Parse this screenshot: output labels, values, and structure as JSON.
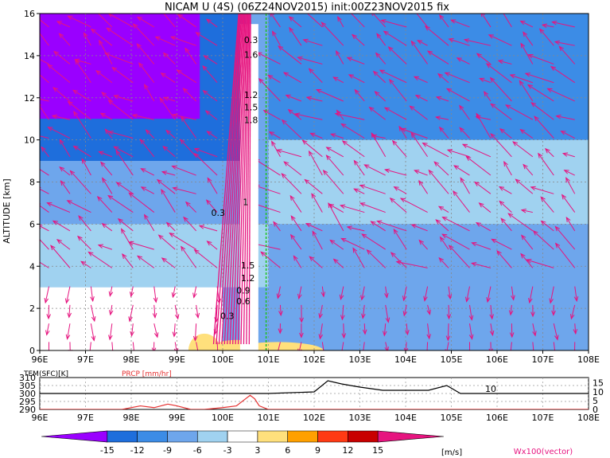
{
  "title": "NICAM U (4S) (06Z24NOV2015) init:00Z23NOV2015 fix",
  "chart_data": [
    {
      "type": "heatmap",
      "title": "NICAM U (4S) (06Z24NOV2015) init:00Z23NOV2015 fix",
      "xlabel": "",
      "ylabel": "ALTITUDE [km]",
      "x_ticks": [
        "96E",
        "97E",
        "98E",
        "99E",
        "100E",
        "101E",
        "102E",
        "103E",
        "104E",
        "105E",
        "106E",
        "107E",
        "108E"
      ],
      "y_ticks": [
        "0",
        "2",
        "4",
        "6",
        "8",
        "10",
        "12",
        "14",
        "16"
      ],
      "xlim": [
        96,
        108
      ],
      "ylim": [
        0,
        16
      ],
      "grid": true,
      "contour_labels": [
        "0.3",
        "1.6",
        "1.2",
        "1.5",
        "1.8",
        "0.3",
        "1",
        "1.5",
        "1.2",
        "0.9",
        "0.6",
        "0.3"
      ],
      "u_regions": [
        {
          "x": [
            96,
            100.5
          ],
          "z": [
            9,
            16
          ],
          "u": -12
        },
        {
          "x": [
            96,
            99.5
          ],
          "z": [
            11,
            16
          ],
          "u": -15
        },
        {
          "x": [
            96,
            100.5
          ],
          "z": [
            6,
            9
          ],
          "u": -8
        },
        {
          "x": [
            96,
            101
          ],
          "z": [
            3,
            6
          ],
          "u": -5
        },
        {
          "x": [
            96,
            100
          ],
          "z": [
            0,
            3
          ],
          "u": 1
        },
        {
          "x": [
            101,
            108
          ],
          "z": [
            10,
            16
          ],
          "u": -9
        },
        {
          "x": [
            101,
            108
          ],
          "z": [
            6,
            10
          ],
          "u": -4
        },
        {
          "x": [
            101,
            108
          ],
          "z": [
            0,
            6
          ],
          "u": -6
        }
      ]
    },
    {
      "type": "line",
      "series": [
        {
          "name": "TEM(SFC)[K]",
          "x": [
            96,
            98,
            99,
            100,
            100.5,
            101,
            102,
            102.3,
            102.6,
            103,
            103.5,
            104,
            104.5,
            104.9,
            105.2,
            105.5,
            106,
            107,
            108
          ],
          "values": [
            300,
            300,
            300,
            300,
            300,
            300,
            301,
            308,
            306,
            304,
            302,
            302,
            302,
            305,
            300,
            300,
            300,
            300,
            300
          ]
        },
        {
          "name": "PRCP [mm/hr]",
          "x": [
            96,
            97.8,
            98.2,
            98.5,
            98.8,
            99,
            99.3,
            99.6,
            100,
            100.3,
            100.5,
            100.6,
            100.7,
            100.8,
            101,
            108
          ],
          "values": [
            0,
            0,
            2,
            1,
            3,
            2,
            0,
            0,
            1,
            2,
            6,
            8,
            6,
            2,
            0,
            0
          ]
        }
      ],
      "x_ticks": [
        "96E",
        "97E",
        "98E",
        "99E",
        "100E",
        "101E",
        "102E",
        "103E",
        "104E",
        "105E",
        "106E",
        "107E",
        "108E"
      ],
      "y_ticks_left": [
        "290",
        "295",
        "300",
        "305",
        "310"
      ],
      "y_ticks_right": [
        "0",
        "5",
        "10",
        "15"
      ],
      "annotation": "10"
    }
  ],
  "colorbar": {
    "labels": [
      "-15",
      "-12",
      "-9",
      "-6",
      "-3",
      "3",
      "6",
      "9",
      "12",
      "15"
    ],
    "unit": "[m/s]",
    "colors": [
      "#9a00ff",
      "#1e6edc",
      "#3c8ce6",
      "#6ea6ec",
      "#a0d2f0",
      "#ffffff",
      "#ffe07c",
      "#ffa000",
      "#ff3a14",
      "#c80000",
      "#e6147f"
    ]
  },
  "vector_label": "Wx100(vector)",
  "lower_labels": {
    "tem": "TEM(SFC)[K]",
    "prcp": "PRCP [mm/hr]"
  }
}
